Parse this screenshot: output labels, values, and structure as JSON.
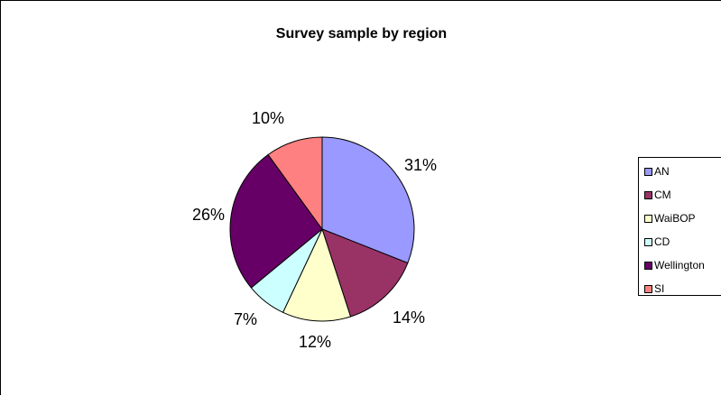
{
  "chart_data": {
    "type": "pie",
    "title": "Survey sample by region",
    "categories": [
      "AN",
      "CM",
      "WaiBOP",
      "CD",
      "Wellington",
      "SI"
    ],
    "values": [
      31,
      14,
      12,
      7,
      26,
      10
    ],
    "labels": [
      "31%",
      "14%",
      "12%",
      "7%",
      "26%",
      "10%"
    ],
    "colors": [
      "#9999FF",
      "#993366",
      "#FFFFCC",
      "#CCFFFF",
      "#660066",
      "#FF8080"
    ],
    "legend_position": "right",
    "start_angle": "top, clockwise"
  }
}
